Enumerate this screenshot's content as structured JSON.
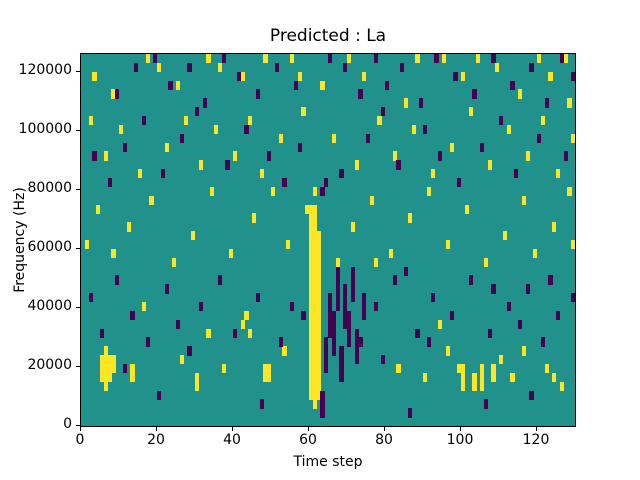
{
  "chart_data": {
    "type": "heatmap",
    "title": "Predicted : La",
    "xlabel": "Time step",
    "ylabel": "Frequency (Hz)",
    "xlim": [
      0,
      130
    ],
    "ylim": [
      0,
      126000
    ],
    "x_ticks": [
      0,
      20,
      40,
      60,
      80,
      100,
      120
    ],
    "y_ticks": [
      0,
      20000,
      40000,
      60000,
      80000,
      100000,
      120000
    ],
    "grid": {
      "cols": 130,
      "rows": 42,
      "cell_hz": 3000
    },
    "legend": "none",
    "colors": {
      "background": "#21918c",
      "high": "#fde725",
      "low": "#440154"
    },
    "cells": {
      "yellow": [
        [
          3,
          39
        ],
        [
          8,
          37
        ],
        [
          17,
          41
        ],
        [
          20,
          40
        ],
        [
          25,
          38
        ],
        [
          33,
          41
        ],
        [
          36,
          40
        ],
        [
          42,
          39
        ],
        [
          48,
          41
        ],
        [
          55,
          41
        ],
        [
          57,
          39
        ],
        [
          63,
          38
        ],
        [
          70,
          41
        ],
        [
          74,
          39
        ],
        [
          85,
          36
        ],
        [
          88,
          41
        ],
        [
          95,
          41
        ],
        [
          100,
          39
        ],
        [
          104,
          41
        ],
        [
          109,
          40
        ],
        [
          115,
          37
        ],
        [
          120,
          41
        ],
        [
          123,
          39
        ],
        [
          127,
          41
        ],
        [
          128,
          36
        ],
        [
          2,
          34
        ],
        [
          6,
          30
        ],
        [
          10,
          33
        ],
        [
          15,
          28
        ],
        [
          22,
          31
        ],
        [
          27,
          34
        ],
        [
          31,
          29
        ],
        [
          35,
          33
        ],
        [
          40,
          30
        ],
        [
          44,
          34
        ],
        [
          47,
          28
        ],
        [
          52,
          32
        ],
        [
          58,
          35
        ],
        [
          61,
          26
        ],
        [
          66,
          32
        ],
        [
          72,
          29
        ],
        [
          78,
          34
        ],
        [
          82,
          30
        ],
        [
          87,
          33
        ],
        [
          92,
          28
        ],
        [
          97,
          31
        ],
        [
          102,
          35
        ],
        [
          107,
          29
        ],
        [
          112,
          33
        ],
        [
          117,
          30
        ],
        [
          121,
          34
        ],
        [
          125,
          28
        ],
        [
          129,
          32
        ],
        [
          1,
          20
        ],
        [
          4,
          24
        ],
        [
          8,
          19
        ],
        [
          12,
          22
        ],
        [
          18,
          25
        ],
        [
          24,
          18
        ],
        [
          29,
          21
        ],
        [
          34,
          26
        ],
        [
          39,
          19
        ],
        [
          45,
          23
        ],
        [
          50,
          26
        ],
        [
          54,
          20
        ],
        [
          59,
          24
        ],
        [
          67,
          18
        ],
        [
          71,
          22
        ],
        [
          76,
          25
        ],
        [
          81,
          19
        ],
        [
          86,
          23
        ],
        [
          91,
          26
        ],
        [
          96,
          20
        ],
        [
          101,
          24
        ],
        [
          106,
          18
        ],
        [
          111,
          21
        ],
        [
          116,
          25
        ],
        [
          119,
          19
        ],
        [
          124,
          22
        ],
        [
          128,
          26
        ],
        [
          13,
          5
        ],
        [
          13,
          6
        ],
        [
          30,
          4
        ],
        [
          30,
          5
        ],
        [
          33,
          10
        ],
        [
          42,
          11
        ],
        [
          43,
          12
        ],
        [
          44,
          10
        ],
        [
          49,
          5
        ],
        [
          49,
          6
        ],
        [
          77,
          18
        ],
        [
          90,
          5
        ],
        [
          96,
          8
        ],
        [
          110,
          7
        ],
        [
          113,
          5
        ],
        [
          122,
          6
        ],
        [
          126,
          4
        ],
        [
          129,
          20
        ],
        [
          16,
          13
        ],
        [
          26,
          7
        ],
        [
          37,
          6
        ],
        [
          53,
          8
        ],
        [
          83,
          6
        ],
        [
          94,
          11
        ],
        [
          99,
          6
        ],
        [
          116,
          8
        ],
        [
          124,
          5
        ]
      ],
      "purple": [
        [
          9,
          37
        ],
        [
          14,
          40
        ],
        [
          19,
          41
        ],
        [
          23,
          38
        ],
        [
          28,
          40
        ],
        [
          32,
          36
        ],
        [
          37,
          41
        ],
        [
          41,
          39
        ],
        [
          46,
          37
        ],
        [
          51,
          40
        ],
        [
          56,
          38
        ],
        [
          65,
          41
        ],
        [
          69,
          40
        ],
        [
          73,
          37
        ],
        [
          77,
          41
        ],
        [
          80,
          38
        ],
        [
          84,
          40
        ],
        [
          89,
          36
        ],
        [
          93,
          41
        ],
        [
          98,
          39
        ],
        [
          103,
          37
        ],
        [
          108,
          41
        ],
        [
          113,
          38
        ],
        [
          118,
          40
        ],
        [
          122,
          36
        ],
        [
          126,
          41
        ],
        [
          129,
          39
        ],
        [
          3,
          30
        ],
        [
          7,
          27
        ],
        [
          11,
          31
        ],
        [
          16,
          34
        ],
        [
          21,
          28
        ],
        [
          26,
          32
        ],
        [
          30,
          35
        ],
        [
          38,
          29
        ],
        [
          43,
          33
        ],
        [
          49,
          30
        ],
        [
          53,
          27
        ],
        [
          57,
          31
        ],
        [
          63,
          26
        ],
        [
          64,
          27
        ],
        [
          68,
          28
        ],
        [
          75,
          32
        ],
        [
          79,
          35
        ],
        [
          83,
          29
        ],
        [
          90,
          33
        ],
        [
          94,
          30
        ],
        [
          99,
          27
        ],
        [
          105,
          31
        ],
        [
          110,
          34
        ],
        [
          114,
          28
        ],
        [
          120,
          32
        ],
        [
          127,
          30
        ],
        [
          2,
          14
        ],
        [
          5,
          10
        ],
        [
          9,
          16
        ],
        [
          13,
          12
        ],
        [
          17,
          9
        ],
        [
          22,
          15
        ],
        [
          25,
          11
        ],
        [
          31,
          13
        ],
        [
          36,
          16
        ],
        [
          40,
          10
        ],
        [
          46,
          14
        ],
        [
          52,
          9
        ],
        [
          55,
          13
        ],
        [
          69,
          15
        ],
        [
          73,
          9
        ],
        [
          77,
          13
        ],
        [
          82,
          16
        ],
        [
          88,
          10
        ],
        [
          92,
          14
        ],
        [
          97,
          12
        ],
        [
          102,
          16
        ],
        [
          107,
          10
        ],
        [
          112,
          13
        ],
        [
          117,
          15
        ],
        [
          121,
          9
        ],
        [
          125,
          12
        ],
        [
          129,
          14
        ],
        [
          106,
          2
        ],
        [
          20,
          3
        ],
        [
          47,
          2
        ],
        [
          86,
          1
        ],
        [
          118,
          3
        ],
        [
          11,
          6
        ],
        [
          28,
          8
        ],
        [
          58,
          12
        ],
        [
          79,
          7
        ],
        [
          85,
          17
        ],
        [
          91,
          9
        ],
        [
          108,
          15
        ],
        [
          115,
          11
        ],
        [
          123,
          16
        ]
      ]
    },
    "runs": [
      {
        "x": 60,
        "from": 3,
        "to": 24,
        "color": "yellow"
      },
      {
        "x": 61,
        "from": 2,
        "to": 24,
        "color": "yellow"
      },
      {
        "x": 62,
        "from": 3,
        "to": 21,
        "color": "yellow"
      },
      {
        "x": 5,
        "from": 5,
        "to": 7,
        "color": "yellow"
      },
      {
        "x": 6,
        "from": 4,
        "to": 8,
        "color": "yellow"
      },
      {
        "x": 7,
        "from": 5,
        "to": 7,
        "color": "yellow"
      },
      {
        "x": 8,
        "from": 6,
        "to": 7,
        "color": "yellow"
      },
      {
        "x": 48,
        "from": 5,
        "to": 6,
        "color": "yellow"
      },
      {
        "x": 100,
        "from": 4,
        "to": 6,
        "color": "yellow"
      },
      {
        "x": 103,
        "from": 4,
        "to": 5,
        "color": "yellow"
      },
      {
        "x": 105,
        "from": 4,
        "to": 6,
        "color": "yellow"
      },
      {
        "x": 108,
        "from": 5,
        "to": 6,
        "color": "yellow"
      },
      {
        "x": 63,
        "from": 1,
        "to": 3,
        "color": "purple"
      },
      {
        "x": 64,
        "from": 6,
        "to": 9,
        "color": "purple"
      },
      {
        "x": 65,
        "from": 10,
        "to": 14,
        "color": "purple"
      },
      {
        "x": 66,
        "from": 8,
        "to": 12,
        "color": "purple"
      },
      {
        "x": 67,
        "from": 13,
        "to": 17,
        "color": "purple"
      },
      {
        "x": 68,
        "from": 5,
        "to": 8,
        "color": "purple"
      },
      {
        "x": 69,
        "from": 11,
        "to": 14,
        "color": "purple"
      },
      {
        "x": 70,
        "from": 9,
        "to": 12,
        "color": "purple"
      },
      {
        "x": 71,
        "from": 14,
        "to": 17,
        "color": "purple"
      },
      {
        "x": 72,
        "from": 7,
        "to": 10,
        "color": "purple"
      },
      {
        "x": 74,
        "from": 12,
        "to": 14,
        "color": "purple"
      }
    ]
  }
}
